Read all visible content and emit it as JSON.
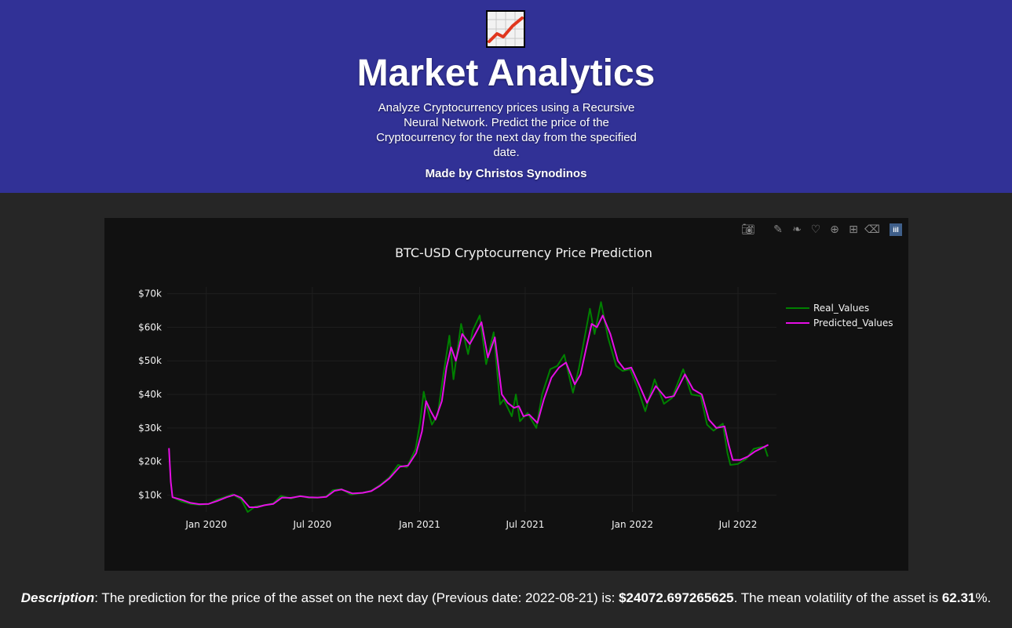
{
  "header": {
    "logo_icon": "chart-increasing-icon",
    "title": "Market Analytics",
    "subtitle": "Analyze Cryptocurrency prices using a Recursive Neural Network. Predict the price of the Cryptocurrency for the next day from the specified date.",
    "author": "Made by Christos Synodinos",
    "background_color": "#313196"
  },
  "modebar": {
    "icons": [
      "camera-icon",
      "draw-line-icon",
      "draw-open-path-icon",
      "draw-closed-path-icon",
      "zoom-in-icon",
      "autoscale-icon",
      "erase-shape-icon",
      "plotly-logo-icon"
    ]
  },
  "chart_data": {
    "type": "line",
    "title": "BTC-USD Cryptocurrency Price Prediction",
    "xlabel": "",
    "ylabel": "",
    "x_tick_labels": [
      "Jan 2020",
      "Jul 2020",
      "Jan 2021",
      "Jul 2021",
      "Jan 2022",
      "Jul 2022"
    ],
    "y_tick_labels": [
      "$10k",
      "$20k",
      "$30k",
      "$40k",
      "$50k",
      "$60k",
      "$70k"
    ],
    "ylim": [
      5000,
      72000
    ],
    "xlim": [
      "2019-10-26",
      "2022-09-05"
    ],
    "grid": true,
    "legend_position": "top-right",
    "series": [
      {
        "name": "Real_Values",
        "color": "#008000",
        "points": [
          [
            "2019-11-05",
            9400
          ],
          [
            "2019-11-20",
            8100
          ],
          [
            "2019-12-05",
            7400
          ],
          [
            "2019-12-20",
            7150
          ],
          [
            "2020-01-05",
            7350
          ],
          [
            "2020-01-20",
            8700
          ],
          [
            "2020-02-05",
            9600
          ],
          [
            "2020-02-15",
            10300
          ],
          [
            "2020-03-01",
            8700
          ],
          [
            "2020-03-12",
            5000
          ],
          [
            "2020-03-25",
            6600
          ],
          [
            "2020-04-10",
            7000
          ],
          [
            "2020-04-25",
            7600
          ],
          [
            "2020-05-08",
            9800
          ],
          [
            "2020-05-25",
            9000
          ],
          [
            "2020-06-10",
            9800
          ],
          [
            "2020-06-25",
            9200
          ],
          [
            "2020-07-10",
            9250
          ],
          [
            "2020-07-25",
            9600
          ],
          [
            "2020-08-05",
            11500
          ],
          [
            "2020-08-20",
            11800
          ],
          [
            "2020-09-05",
            10200
          ],
          [
            "2020-09-25",
            10700
          ],
          [
            "2020-10-10",
            11300
          ],
          [
            "2020-10-25",
            13000
          ],
          [
            "2020-11-10",
            15300
          ],
          [
            "2020-11-25",
            19000
          ],
          [
            "2020-12-10",
            18300
          ],
          [
            "2020-12-25",
            23700
          ],
          [
            "2021-01-02",
            32000
          ],
          [
            "2021-01-08",
            40800
          ],
          [
            "2021-01-14",
            36000
          ],
          [
            "2021-01-22",
            31000
          ],
          [
            "2021-02-01",
            34000
          ],
          [
            "2021-02-10",
            45000
          ],
          [
            "2021-02-21",
            57500
          ],
          [
            "2021-02-28",
            44500
          ],
          [
            "2021-03-13",
            61000
          ],
          [
            "2021-03-25",
            52000
          ],
          [
            "2021-04-02",
            59000
          ],
          [
            "2021-04-14",
            63500
          ],
          [
            "2021-04-25",
            49000
          ],
          [
            "2021-05-08",
            58500
          ],
          [
            "2021-05-19",
            37000
          ],
          [
            "2021-05-25",
            38500
          ],
          [
            "2021-06-08",
            33500
          ],
          [
            "2021-06-15",
            40000
          ],
          [
            "2021-06-22",
            32000
          ],
          [
            "2021-07-05",
            34500
          ],
          [
            "2021-07-20",
            30000
          ],
          [
            "2021-07-30",
            40000
          ],
          [
            "2021-08-13",
            47500
          ],
          [
            "2021-08-25",
            48500
          ],
          [
            "2021-09-06",
            51800
          ],
          [
            "2021-09-21",
            40500
          ],
          [
            "2021-10-01",
            47700
          ],
          [
            "2021-10-10",
            56000
          ],
          [
            "2021-10-20",
            65500
          ],
          [
            "2021-10-28",
            58000
          ],
          [
            "2021-11-08",
            67500
          ],
          [
            "2021-11-20",
            57000
          ],
          [
            "2021-12-04",
            48500
          ],
          [
            "2021-12-15",
            47000
          ],
          [
            "2021-12-28",
            47500
          ],
          [
            "2022-01-10",
            41800
          ],
          [
            "2022-01-23",
            35000
          ],
          [
            "2022-02-08",
            44500
          ],
          [
            "2022-02-24",
            37200
          ],
          [
            "2022-03-10",
            39000
          ],
          [
            "2022-03-29",
            47500
          ],
          [
            "2022-04-12",
            40000
          ],
          [
            "2022-04-28",
            39500
          ],
          [
            "2022-05-09",
            31000
          ],
          [
            "2022-05-20",
            29200
          ],
          [
            "2022-06-05",
            31300
          ],
          [
            "2022-06-13",
            22500
          ],
          [
            "2022-06-18",
            19000
          ],
          [
            "2022-07-01",
            19300
          ],
          [
            "2022-07-15",
            20800
          ],
          [
            "2022-07-28",
            23800
          ],
          [
            "2022-08-12",
            24400
          ],
          [
            "2022-08-16",
            24200
          ],
          [
            "2022-08-21",
            21500
          ]
        ]
      },
      {
        "name": "Predicted_Values",
        "color": "#e60ee6",
        "points": [
          [
            "2019-10-29",
            24000
          ],
          [
            "2019-11-01",
            14000
          ],
          [
            "2019-11-04",
            9400
          ],
          [
            "2019-11-20",
            8600
          ],
          [
            "2019-12-05",
            7700
          ],
          [
            "2019-12-20",
            7300
          ],
          [
            "2020-01-05",
            7400
          ],
          [
            "2020-01-20",
            8300
          ],
          [
            "2020-02-05",
            9400
          ],
          [
            "2020-02-18",
            10100
          ],
          [
            "2020-03-01",
            9200
          ],
          [
            "2020-03-15",
            6400
          ],
          [
            "2020-03-28",
            6400
          ],
          [
            "2020-04-10",
            7000
          ],
          [
            "2020-04-25",
            7400
          ],
          [
            "2020-05-10",
            9300
          ],
          [
            "2020-05-25",
            9200
          ],
          [
            "2020-06-10",
            9700
          ],
          [
            "2020-06-25",
            9400
          ],
          [
            "2020-07-10",
            9300
          ],
          [
            "2020-07-25",
            9500
          ],
          [
            "2020-08-08",
            11300
          ],
          [
            "2020-08-20",
            11700
          ],
          [
            "2020-09-08",
            10500
          ],
          [
            "2020-09-25",
            10700
          ],
          [
            "2020-10-10",
            11200
          ],
          [
            "2020-10-25",
            12800
          ],
          [
            "2020-11-10",
            15000
          ],
          [
            "2020-11-28",
            18500
          ],
          [
            "2020-12-12",
            18800
          ],
          [
            "2020-12-26",
            22500
          ],
          [
            "2021-01-05",
            29000
          ],
          [
            "2021-01-12",
            38000
          ],
          [
            "2021-01-20",
            35000
          ],
          [
            "2021-01-28",
            32500
          ],
          [
            "2021-02-08",
            38000
          ],
          [
            "2021-02-16",
            48000
          ],
          [
            "2021-02-24",
            54000
          ],
          [
            "2021-03-04",
            50000
          ],
          [
            "2021-03-15",
            58000
          ],
          [
            "2021-03-28",
            55000
          ],
          [
            "2021-04-05",
            57500
          ],
          [
            "2021-04-17",
            61500
          ],
          [
            "2021-04-28",
            51000
          ],
          [
            "2021-05-10",
            57000
          ],
          [
            "2021-05-22",
            40000
          ],
          [
            "2021-06-01",
            37500
          ],
          [
            "2021-06-12",
            36000
          ],
          [
            "2021-06-20",
            36500
          ],
          [
            "2021-06-28",
            33500
          ],
          [
            "2021-07-08",
            34000
          ],
          [
            "2021-07-22",
            31500
          ],
          [
            "2021-08-02",
            38500
          ],
          [
            "2021-08-15",
            45000
          ],
          [
            "2021-08-28",
            48000
          ],
          [
            "2021-09-09",
            49500
          ],
          [
            "2021-09-24",
            43000
          ],
          [
            "2021-10-04",
            46000
          ],
          [
            "2021-10-14",
            54000
          ],
          [
            "2021-10-23",
            61000
          ],
          [
            "2021-11-01",
            60000
          ],
          [
            "2021-11-11",
            63500
          ],
          [
            "2021-11-24",
            58000
          ],
          [
            "2021-12-07",
            50000
          ],
          [
            "2021-12-18",
            47500
          ],
          [
            "2021-12-30",
            48000
          ],
          [
            "2022-01-12",
            43000
          ],
          [
            "2022-01-26",
            37500
          ],
          [
            "2022-02-10",
            42500
          ],
          [
            "2022-02-27",
            39000
          ],
          [
            "2022-03-13",
            39500
          ],
          [
            "2022-04-01",
            46000
          ],
          [
            "2022-04-15",
            41500
          ],
          [
            "2022-04-30",
            40000
          ],
          [
            "2022-05-12",
            32500
          ],
          [
            "2022-05-25",
            30000
          ],
          [
            "2022-06-08",
            30500
          ],
          [
            "2022-06-15",
            25000
          ],
          [
            "2022-06-22",
            20500
          ],
          [
            "2022-07-05",
            20500
          ],
          [
            "2022-07-18",
            21500
          ],
          [
            "2022-07-30",
            23000
          ],
          [
            "2022-08-14",
            24300
          ],
          [
            "2022-08-22",
            25000
          ]
        ]
      }
    ]
  },
  "description": {
    "label": "Description",
    "text_before": ": The prediction for the price of the asset on the next day (Previous date: 2022-08-21) is: ",
    "prediction": "$24072.697265625",
    "text_middle": ". The mean volatility of the asset is ",
    "volatility": "62.31",
    "text_after": "%."
  }
}
